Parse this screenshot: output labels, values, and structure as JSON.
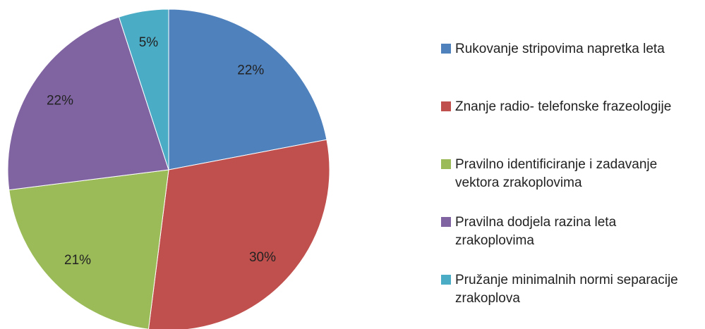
{
  "chart_data": {
    "type": "pie",
    "categories": [
      "Rukovanje stripovima napretka leta",
      "Znanje radio- telefonske frazeologije",
      "Pravilno identificiranje i zadavanje vektora zrakoplovima",
      "Pravilna dodjela razina leta zrakoplovima",
      "Pružanje minimalnih normi separacije zrakoplova"
    ],
    "values": [
      22,
      30,
      21,
      22,
      5
    ],
    "value_labels": [
      "22%",
      "30%",
      "21%",
      "22%",
      "5%"
    ],
    "colors": [
      "#4f81bd",
      "#c0504d",
      "#9bbb59",
      "#8064a2",
      "#4bacc6"
    ],
    "legend": "right"
  }
}
